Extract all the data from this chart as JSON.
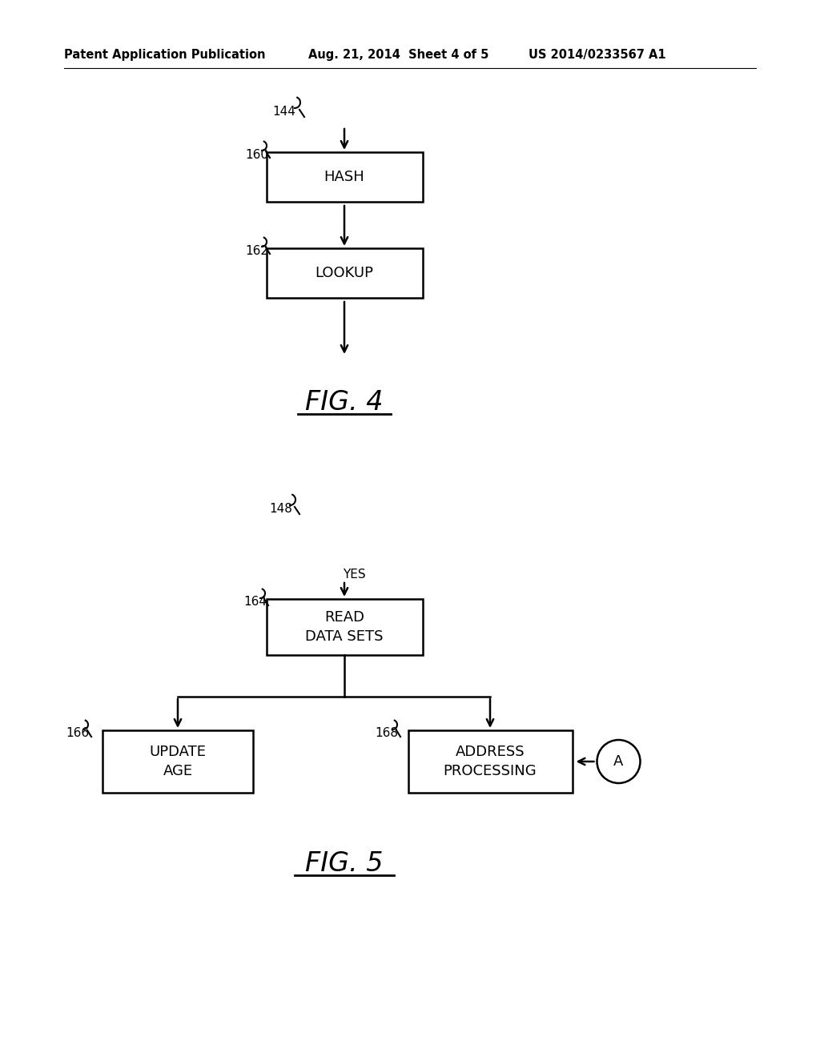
{
  "bg_color": "#ffffff",
  "header_left": "Patent Application Publication",
  "header_mid": "Aug. 21, 2014  Sheet 4 of 5",
  "header_right": "US 2014/0233567 A1",
  "fig4_label": "FIG. 4",
  "fig5_label": "FIG. 5",
  "fig4": {
    "ref_top": "144",
    "box1_label": "HASH",
    "box1_ref": "160",
    "box2_label": "LOOKUP",
    "box2_ref": "162"
  },
  "fig5": {
    "ref_top": "148",
    "yes_label": "YES",
    "box_top_label": "READ\nDATA SETS",
    "box_top_ref": "164",
    "box_left_label": "UPDATE\nAGE",
    "box_left_ref": "166",
    "box_right_label": "ADDRESS\nPROCESSING",
    "box_right_ref": "168",
    "circle_label": "A"
  }
}
